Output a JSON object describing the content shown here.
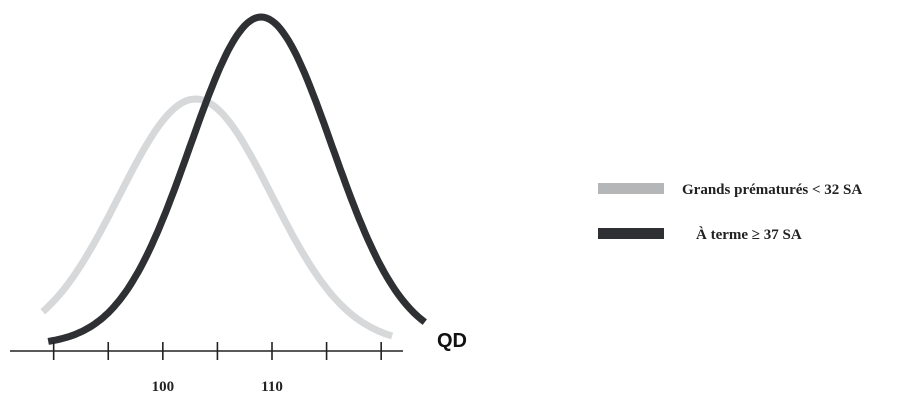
{
  "chart_data": {
    "type": "line",
    "title": "",
    "xlabel": "QD",
    "ylabel": "",
    "xlim": [
      86,
      122
    ],
    "ticks": [
      90,
      95,
      100,
      105,
      110,
      115,
      120
    ],
    "tick_labels": [
      {
        "value": 100,
        "label": "100"
      },
      {
        "value": 110,
        "label": "110"
      }
    ],
    "grid": false,
    "legend_position": "right",
    "series": [
      {
        "name": "Grands prématurés < 32 SA",
        "color": "#d6d8d9",
        "legend_color": "#b4b6b8",
        "distribution": {
          "mean": 103,
          "sd": 7
        },
        "relative_peak": 0.75
      },
      {
        "name": "À terme ≥ 37 SA",
        "color": "#2e3033",
        "legend_color": "#2e3033",
        "distribution": {
          "mean": 109,
          "sd": 6.5
        },
        "relative_peak": 1.0
      }
    ]
  }
}
